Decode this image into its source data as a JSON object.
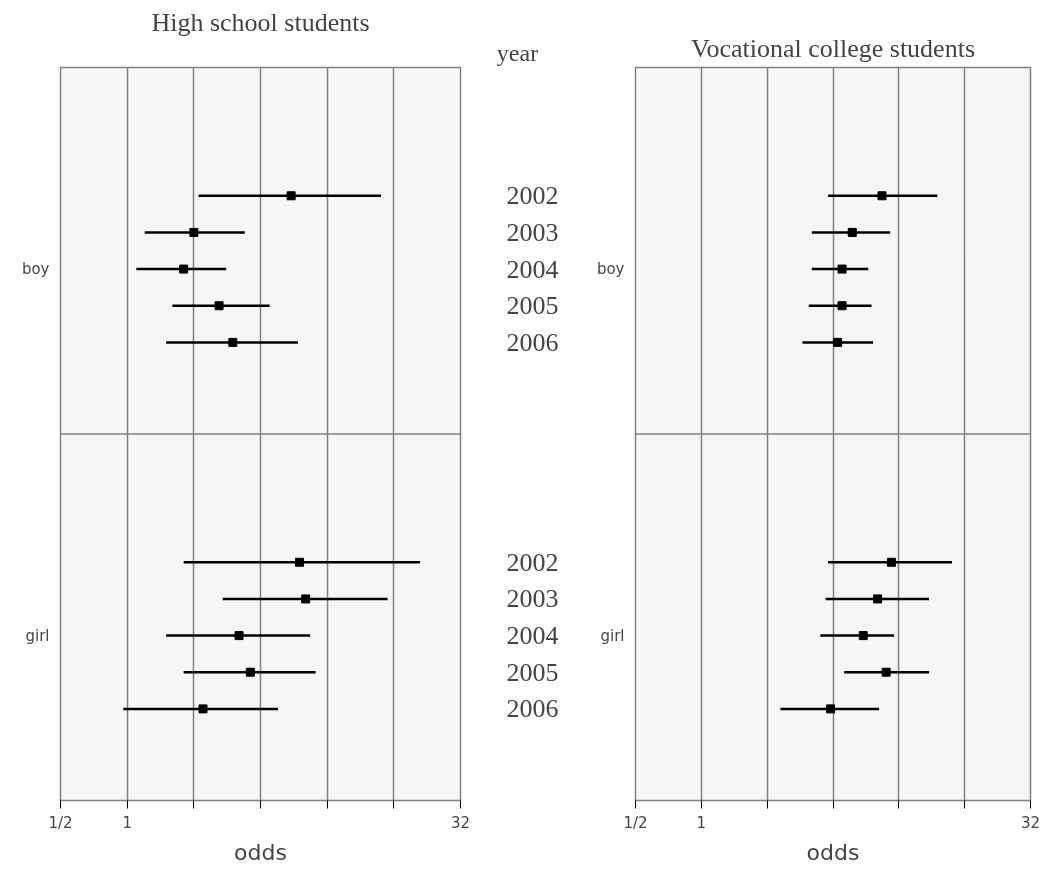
{
  "chart_data": [
    {
      "type": "scatter",
      "orientation": "horizontal",
      "title": "High school students",
      "ylabel": "year",
      "xlabel": "odds",
      "log": "x",
      "marker": "square",
      "grid": "x",
      "categories": [
        "2002",
        "2003",
        "2004",
        "2005",
        "2006",
        "2002",
        "2003",
        "2004",
        "2005",
        "2006"
      ],
      "values": [
        5.5,
        2.0,
        1.8,
        2.6,
        3.0,
        6.0,
        6.4,
        3.2,
        3.6,
        2.2
      ],
      "errors": [
        [
          2.1,
          14
        ],
        [
          1.2,
          3.4
        ],
        [
          1.1,
          2.8
        ],
        [
          1.6,
          4.4
        ],
        [
          1.5,
          5.9
        ],
        [
          1.8,
          21
        ],
        [
          2.7,
          15
        ],
        [
          1.5,
          6.7
        ],
        [
          1.8,
          7.1
        ],
        [
          0.96,
          4.8
        ]
      ],
      "color": "#000000",
      "xlim": [
        0.5,
        32
      ],
      "xticks": [
        {
          "value": 0.5,
          "label": "1/2"
        },
        1,
        {
          "value": 2,
          "label": null
        },
        {
          "value": 4,
          "label": null
        },
        {
          "value": 8,
          "label": null
        },
        {
          "value": 16,
          "label": null
        },
        32
      ],
      "annotations": [
        "boy",
        "girl"
      ]
    },
    {
      "type": "scatter",
      "orientation": "horizontal",
      "title": "Vocational college students",
      "xlabel": "odds",
      "log": "x",
      "marker": "square",
      "grid": "x",
      "tick_labels": "x",
      "categories": [
        "2002",
        "2003",
        "2004",
        "2005",
        "2006",
        "2002",
        "2003",
        "2004",
        "2005",
        "2006"
      ],
      "values": [
        6.7,
        4.9,
        4.4,
        4.4,
        4.2,
        7.4,
        6.4,
        5.5,
        7.0,
        3.9
      ],
      "errors": [
        [
          3.8,
          12
        ],
        [
          3.2,
          7.3
        ],
        [
          3.2,
          5.8
        ],
        [
          3.1,
          6.0
        ],
        [
          2.9,
          6.1
        ],
        [
          3.8,
          14
        ],
        [
          3.7,
          11
        ],
        [
          3.5,
          7.6
        ],
        [
          4.5,
          11
        ],
        [
          2.3,
          6.5
        ]
      ],
      "color": "#000000",
      "xlim": [
        0.5,
        32
      ],
      "xticks": [
        {
          "value": 0.5,
          "label": "1/2"
        },
        1,
        {
          "value": 2,
          "label": null
        },
        {
          "value": 4,
          "label": null
        },
        {
          "value": 8,
          "label": null
        },
        {
          "value": 16,
          "label": null
        },
        32
      ],
      "annotations": [
        "boy",
        "girl"
      ]
    }
  ]
}
